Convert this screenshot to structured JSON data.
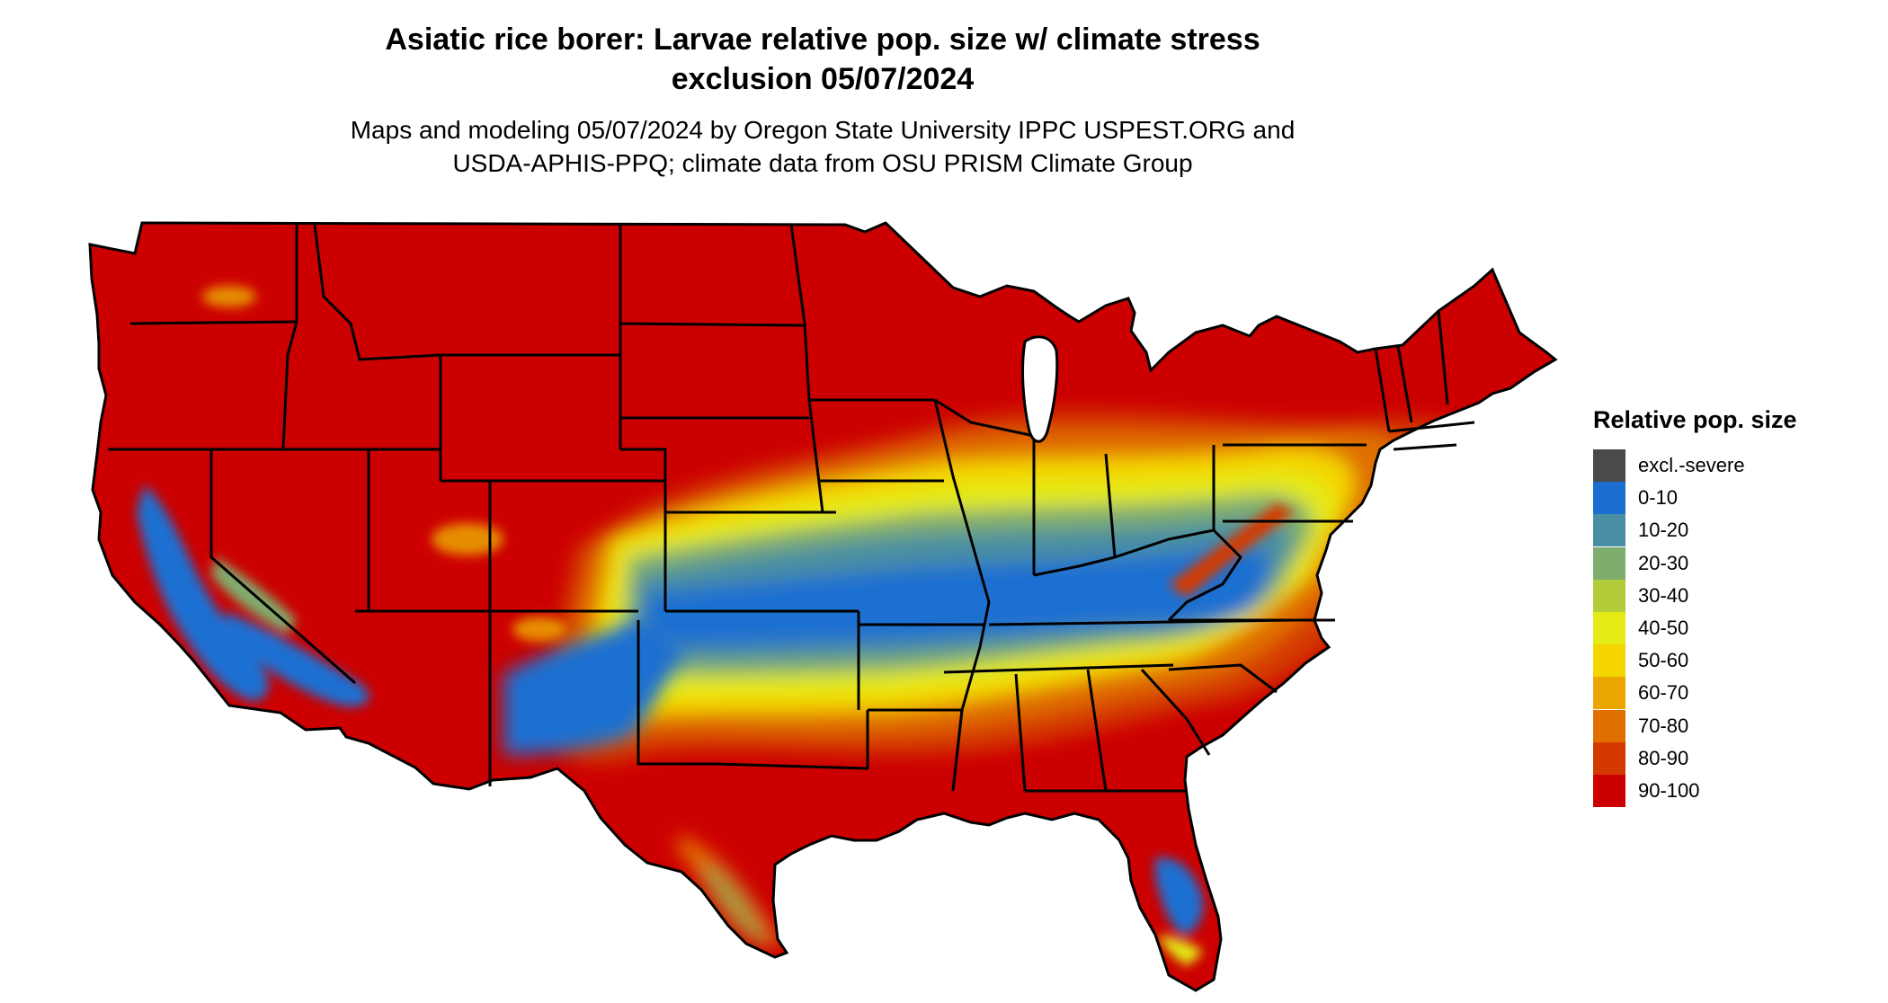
{
  "title": {
    "line1": "Asiatic rice borer: Larvae relative pop. size w/ climate stress",
    "line2": "exclusion 05/07/2024"
  },
  "subtitle": {
    "line1": "Maps and modeling 05/07/2024 by Oregon State University IPPC USPEST.ORG and",
    "line2": "USDA-APHIS-PPQ; climate data from OSU PRISM Climate Group"
  },
  "legend": {
    "title": "Relative pop. size",
    "items": [
      {
        "label": "excl.-severe",
        "color": "#4a4a4a"
      },
      {
        "label": "0-10",
        "color": "#1a6fd1"
      },
      {
        "label": "10-20",
        "color": "#4a8ea3"
      },
      {
        "label": "20-30",
        "color": "#7fad6e"
      },
      {
        "label": "30-40",
        "color": "#b3cc3a"
      },
      {
        "label": "40-50",
        "color": "#e3ea15"
      },
      {
        "label": "50-60",
        "color": "#f4d500"
      },
      {
        "label": "60-70",
        "color": "#eba700"
      },
      {
        "label": "70-80",
        "color": "#e06f00"
      },
      {
        "label": "80-90",
        "color": "#d43a00"
      },
      {
        "label": "90-100",
        "color": "#cc0000"
      }
    ]
  }
}
